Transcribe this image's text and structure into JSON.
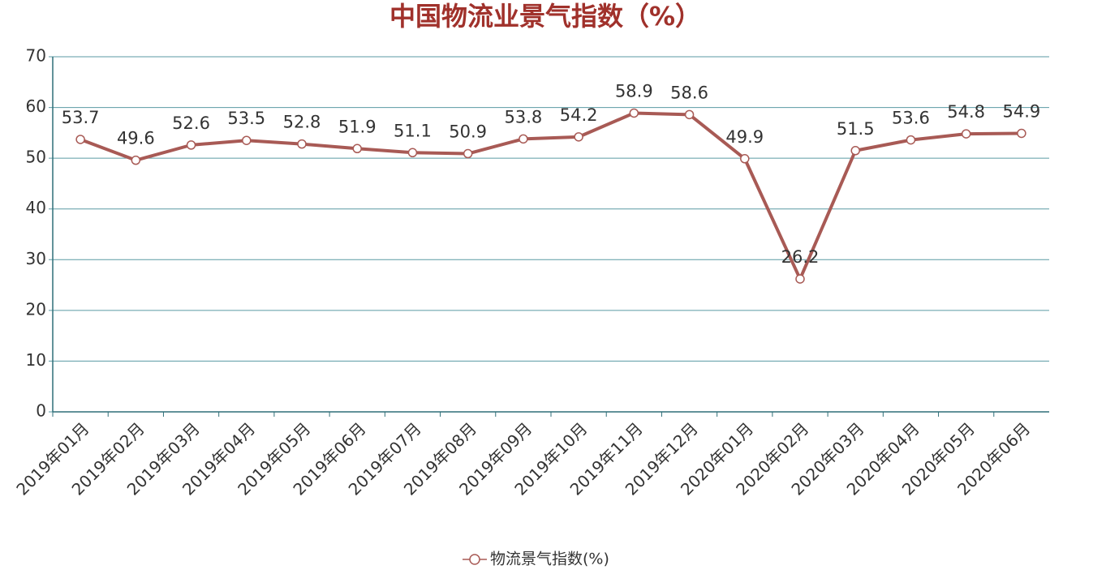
{
  "chart_data": {
    "type": "line",
    "title": "中国物流业景气指数（%）",
    "categories": [
      "2019年01月",
      "2019年02月",
      "2019年03月",
      "2019年04月",
      "2019年05月",
      "2019年06月",
      "2019年07月",
      "2019年08月",
      "2019年09月",
      "2019年10月",
      "2019年11月",
      "2019年12月",
      "2020年01月",
      "2020年02月",
      "2020年03月",
      "2020年04月",
      "2020年05月",
      "2020年06月"
    ],
    "series": [
      {
        "name": "物流景气指数(%)",
        "color": "#a85a55",
        "values": [
          53.7,
          49.6,
          52.6,
          53.5,
          52.8,
          51.9,
          51.1,
          50.9,
          53.8,
          54.2,
          58.9,
          58.6,
          49.9,
          26.2,
          51.5,
          53.6,
          54.8,
          54.9
        ]
      }
    ],
    "ylim": [
      0,
      70
    ],
    "yticks": [
      0,
      10,
      20,
      30,
      40,
      50,
      60,
      70
    ],
    "grid": true,
    "legend": "bottom"
  }
}
